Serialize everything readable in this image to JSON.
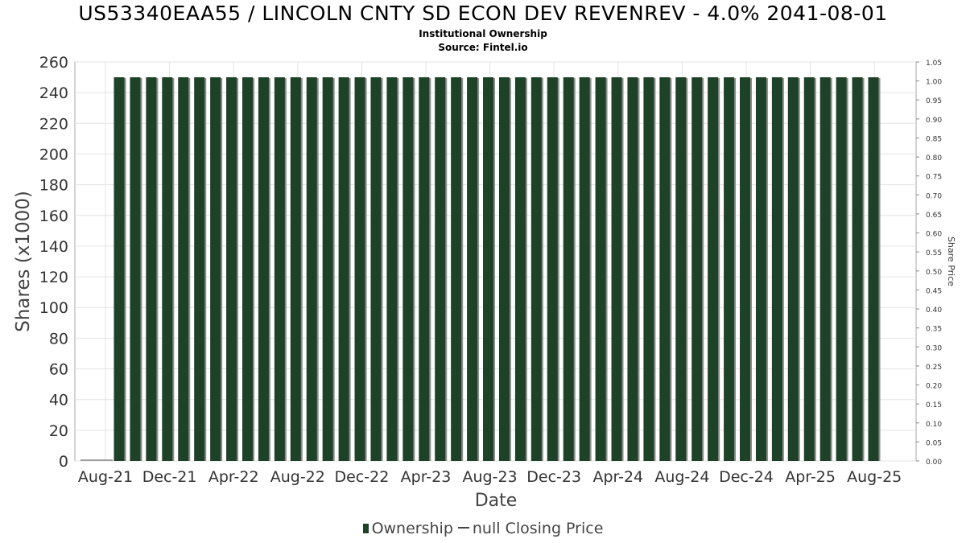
{
  "chart_data": {
    "type": "bar",
    "title": "US53340EAA55 / LINCOLN CNTY SD ECON DEV REVENREV - 4.0% 2041-08-01",
    "subtitle": "Institutional Ownership",
    "source": "Source: Fintel.io",
    "xlabel": "Date",
    "ylabel": "Shares (x1000)",
    "y2label": "Share Price",
    "ylim": [
      0,
      260
    ],
    "y2lim": [
      0,
      1.05
    ],
    "yticks": [
      0,
      20,
      40,
      60,
      80,
      100,
      120,
      140,
      160,
      180,
      200,
      220,
      240,
      260
    ],
    "y2ticks": [
      "0.00",
      "0.05",
      "0.10",
      "0.15",
      "0.20",
      "0.25",
      "0.30",
      "0.35",
      "0.40",
      "0.45",
      "0.50",
      "0.55",
      "0.60",
      "0.65",
      "0.70",
      "0.75",
      "0.80",
      "0.85",
      "0.90",
      "0.95",
      "1.00",
      "1.05"
    ],
    "xticks": [
      "Aug-21",
      "Dec-21",
      "Apr-22",
      "Aug-22",
      "Dec-22",
      "Apr-23",
      "Aug-23",
      "Dec-23",
      "Apr-24",
      "Aug-24",
      "Dec-24",
      "Apr-25",
      "Aug-25"
    ],
    "series": [
      {
        "name": "Ownership",
        "color": "#1d4227",
        "values": [
          250,
          250,
          250,
          250,
          250,
          250,
          250,
          250,
          250,
          250,
          250,
          250,
          250,
          250,
          250,
          250,
          250,
          250,
          250,
          250,
          250,
          250,
          250,
          250,
          250,
          250,
          250,
          250,
          250,
          250,
          250,
          250,
          250,
          250,
          250,
          250,
          250,
          250,
          250,
          250,
          250,
          250,
          250,
          250,
          250,
          250,
          250,
          250
        ]
      },
      {
        "name": "null Closing Price",
        "color": "#444444",
        "values": []
      }
    ],
    "grid": true,
    "legend": "bottom"
  }
}
